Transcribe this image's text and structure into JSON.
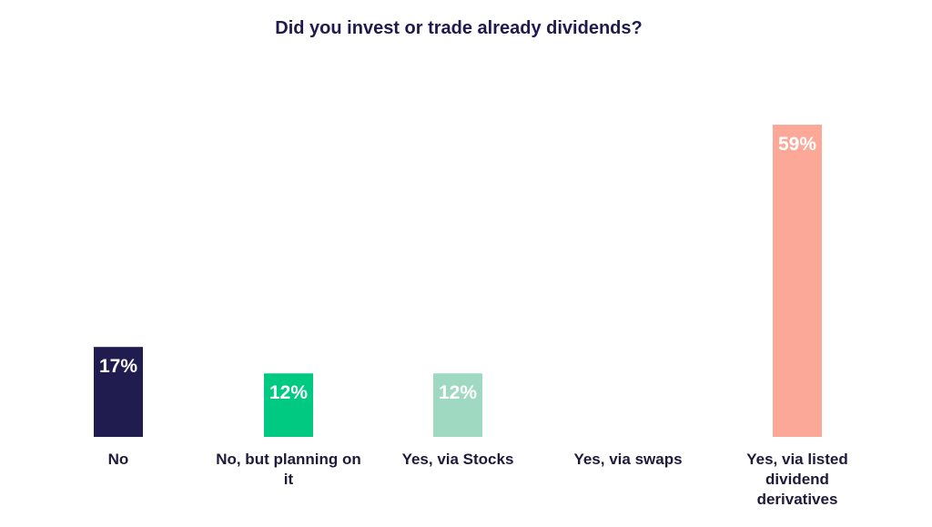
{
  "chart_data": {
    "type": "bar",
    "title": "Did you invest or trade already dividends?",
    "categories": [
      "No",
      "No, but planning on it",
      "Yes, via Stocks",
      "Yes, via swaps",
      "Yes, via listed dividend derivatives"
    ],
    "values": [
      17,
      12,
      12,
      0,
      59
    ],
    "data_labels": [
      "17%",
      "12%",
      "12%",
      "",
      "59%"
    ],
    "colors": [
      "#211c50",
      "#00c981",
      "#9fd9c1",
      "#ffffff",
      "#fba898"
    ],
    "unit": "%",
    "ylim": [
      0,
      59
    ],
    "grid": false,
    "legend": "none"
  }
}
